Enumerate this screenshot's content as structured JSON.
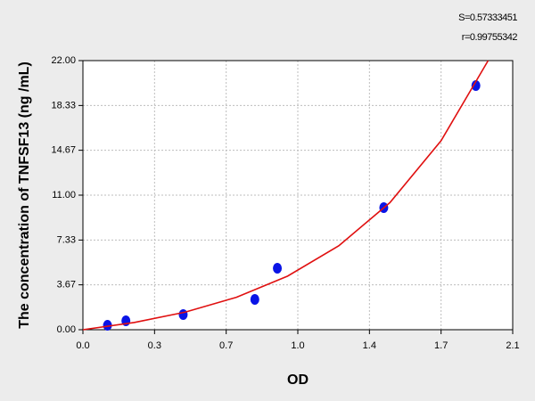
{
  "chart_data": {
    "type": "scatter",
    "annotations": [
      "S=0.57333451",
      "r=0.99755342"
    ],
    "xlabel": "OD",
    "ylabel": "The concentration of TNFSF13 (ng /mL)",
    "xlim": [
      0,
      2.1
    ],
    "ylim": [
      0,
      22
    ],
    "xticks": [
      {
        "value": 0,
        "label": "0.0"
      },
      {
        "value": 0.35,
        "label": "0.3"
      },
      {
        "value": 0.7,
        "label": "0.7"
      },
      {
        "value": 1.05,
        "label": "1.0"
      },
      {
        "value": 1.4,
        "label": "1.4"
      },
      {
        "value": 1.75,
        "label": "1.7"
      },
      {
        "value": 2.1,
        "label": "2.1"
      }
    ],
    "yticks": [
      {
        "value": 0,
        "label": "0.00"
      },
      3.67,
      7.33,
      {
        "value": 11,
        "label": "11.00"
      },
      14.67,
      18.33,
      {
        "value": 22,
        "label": "22.00"
      }
    ],
    "grid": true,
    "series": [
      {
        "type": "scatter",
        "color": "#0a14e6",
        "x": [
          0.12,
          0.21,
          0.49,
          0.84,
          0.95,
          1.47,
          1.92
        ],
        "values": [
          0.36,
          0.73,
          1.24,
          2.48,
          5.03,
          9.98,
          19.96
        ]
      },
      {
        "type": "line",
        "color": "#e01010",
        "x": [
          0,
          0.25,
          0.5,
          0.75,
          1.0,
          1.25,
          1.5,
          1.75,
          1.98
        ],
        "values": [
          0,
          0.59,
          1.44,
          2.65,
          4.38,
          6.86,
          10.39,
          15.45,
          22
        ]
      }
    ]
  }
}
